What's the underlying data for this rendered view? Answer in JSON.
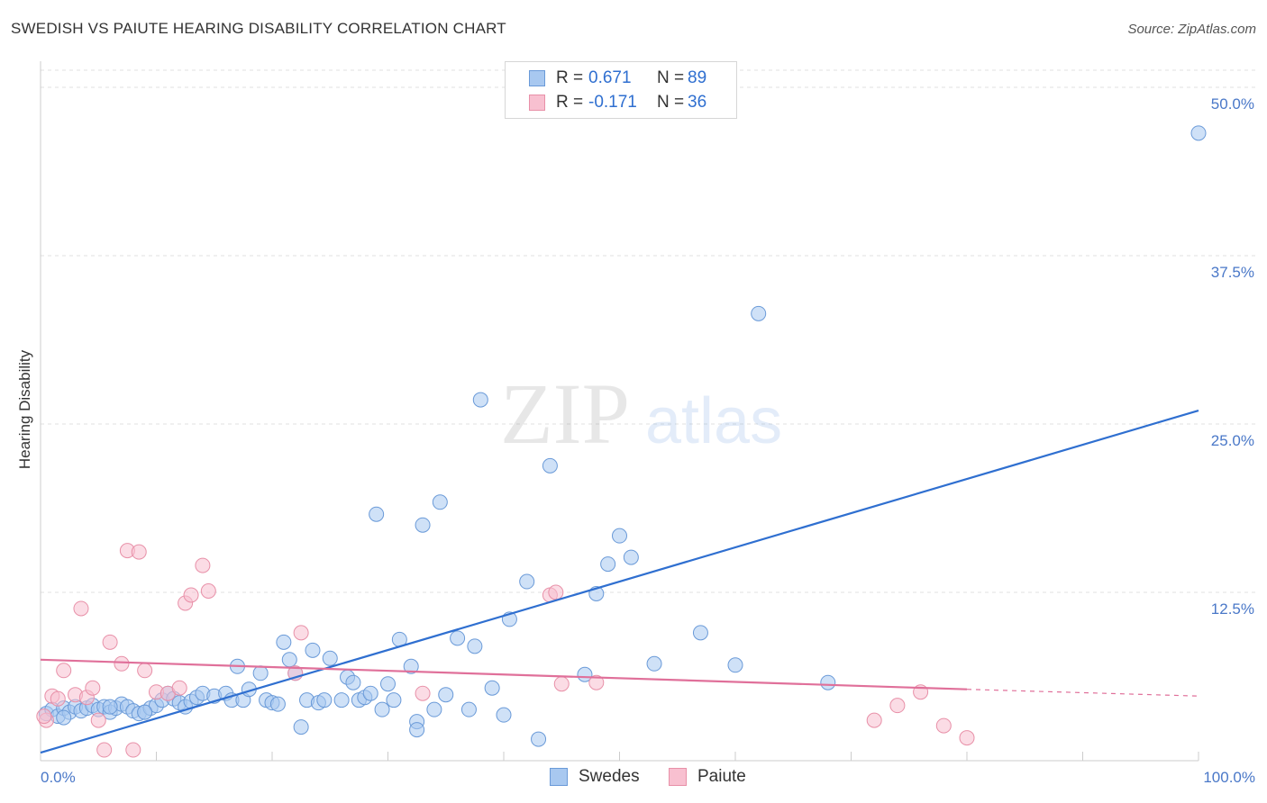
{
  "title": "SWEDISH VS PAIUTE HEARING DISABILITY CORRELATION CHART",
  "source": "Source: ZipAtlas.com",
  "watermark": {
    "zip": "ZIP",
    "atlas": "atlas"
  },
  "legend": {
    "rows": [
      {
        "label": "R =",
        "r": "0.671",
        "n_label": "N =",
        "n": "89",
        "color": "#a8c8f0",
        "border": "#6a9ad8"
      },
      {
        "label": "R =",
        "r": "-0.171",
        "n_label": "N =",
        "n": "36",
        "color": "#f8c0d0",
        "border": "#e890a8"
      }
    ],
    "bottom": [
      {
        "name": "Swedes",
        "color": "#a8c8f0",
        "border": "#6a9ad8"
      },
      {
        "name": "Paiute",
        "color": "#f8c0d0",
        "border": "#e890a8"
      }
    ]
  },
  "chart_data": {
    "type": "scatter",
    "title": "SWEDISH VS PAIUTE HEARING DISABILITY CORRELATION CHART",
    "xlabel": "",
    "ylabel": "Hearing Disability",
    "xlim": [
      0,
      100
    ],
    "ylim": [
      0,
      52
    ],
    "x_tick_labels": [
      "0.0%",
      "100.0%"
    ],
    "y_ticks": [
      12.5,
      25.0,
      37.5,
      50.0
    ],
    "y_tick_labels": [
      "12.5%",
      "25.0%",
      "37.5%",
      "50.0%"
    ],
    "grid": true,
    "series": [
      {
        "name": "Swedes",
        "color": "#a8c8f0",
        "stroke": "#6a9ad8",
        "trend": {
          "x0": 0,
          "y0": 0.6,
          "x1": 100,
          "y1": 26.0,
          "color": "#2f6fd0"
        },
        "points": [
          [
            0.5,
            3.5
          ],
          [
            1,
            3.8
          ],
          [
            1.5,
            3.3
          ],
          [
            2,
            3.9
          ],
          [
            2.5,
            3.6
          ],
          [
            3,
            4.0
          ],
          [
            3.5,
            3.7
          ],
          [
            4,
            3.9
          ],
          [
            4.5,
            4.1
          ],
          [
            5,
            3.8
          ],
          [
            5.5,
            4.0
          ],
          [
            6,
            3.6
          ],
          [
            6.5,
            3.9
          ],
          [
            7,
            4.2
          ],
          [
            7.5,
            4.0
          ],
          [
            8,
            3.7
          ],
          [
            8.5,
            3.5
          ],
          [
            9,
            3.6
          ],
          [
            9.5,
            3.9
          ],
          [
            10,
            4.1
          ],
          [
            10.5,
            4.5
          ],
          [
            11,
            5.0
          ],
          [
            11.5,
            4.6
          ],
          [
            12,
            4.3
          ],
          [
            12.5,
            4.0
          ],
          [
            13,
            4.4
          ],
          [
            13.5,
            4.7
          ],
          [
            14,
            5.0
          ],
          [
            15,
            4.8
          ],
          [
            16,
            5.0
          ],
          [
            16.5,
            4.5
          ],
          [
            17,
            7.0
          ],
          [
            17.5,
            4.5
          ],
          [
            18,
            5.3
          ],
          [
            19,
            6.5
          ],
          [
            19.5,
            4.5
          ],
          [
            20,
            4.3
          ],
          [
            20.5,
            4.2
          ],
          [
            21,
            8.8
          ],
          [
            21.5,
            7.5
          ],
          [
            22,
            6.5
          ],
          [
            22.5,
            2.5
          ],
          [
            23,
            4.5
          ],
          [
            23.5,
            8.2
          ],
          [
            24,
            4.3
          ],
          [
            24.5,
            4.5
          ],
          [
            25,
            7.6
          ],
          [
            26,
            4.5
          ],
          [
            26.5,
            6.2
          ],
          [
            27,
            5.8
          ],
          [
            27.5,
            4.5
          ],
          [
            28,
            4.7
          ],
          [
            28.5,
            5.0
          ],
          [
            29,
            18.3
          ],
          [
            29.5,
            3.8
          ],
          [
            30,
            5.7
          ],
          [
            30.5,
            4.5
          ],
          [
            31,
            9.0
          ],
          [
            32,
            7.0
          ],
          [
            32.5,
            2.9
          ],
          [
            32.5,
            2.3
          ],
          [
            33,
            17.5
          ],
          [
            34,
            3.8
          ],
          [
            34.5,
            19.2
          ],
          [
            35,
            4.9
          ],
          [
            36,
            9.1
          ],
          [
            37,
            3.8
          ],
          [
            37.5,
            8.5
          ],
          [
            38,
            26.8
          ],
          [
            39,
            5.4
          ],
          [
            40,
            3.4
          ],
          [
            40.5,
            10.5
          ],
          [
            42,
            13.3
          ],
          [
            43,
            1.6
          ],
          [
            44,
            21.9
          ],
          [
            47,
            6.4
          ],
          [
            48,
            12.4
          ],
          [
            49,
            14.6
          ],
          [
            50,
            16.7
          ],
          [
            51,
            15.1
          ],
          [
            53,
            7.2
          ],
          [
            57,
            9.5
          ],
          [
            60,
            7.1
          ],
          [
            62,
            33.2
          ],
          [
            68,
            5.8
          ],
          [
            100,
            46.6
          ],
          [
            2,
            3.2
          ],
          [
            6,
            4.0
          ],
          [
            9,
            3.6
          ]
        ]
      },
      {
        "name": "Paiute",
        "color": "#f8c0d0",
        "stroke": "#e890a8",
        "trend": {
          "x0": 0,
          "y0": 7.5,
          "x1": 80,
          "y1": 5.3,
          "color": "#e0709a",
          "dash_to_x": 100,
          "dash_to_y": 4.8
        },
        "points": [
          [
            0.5,
            3.0
          ],
          [
            1,
            4.8
          ],
          [
            1.5,
            4.6
          ],
          [
            2,
            6.7
          ],
          [
            3,
            4.9
          ],
          [
            3.5,
            11.3
          ],
          [
            4,
            4.7
          ],
          [
            4.5,
            5.4
          ],
          [
            5,
            3.0
          ],
          [
            5.5,
            0.8
          ],
          [
            6,
            8.8
          ],
          [
            7,
            7.2
          ],
          [
            7.5,
            15.6
          ],
          [
            8,
            0.8
          ],
          [
            8.5,
            15.5
          ],
          [
            9,
            6.7
          ],
          [
            10,
            5.1
          ],
          [
            11,
            5.0
          ],
          [
            12,
            5.4
          ],
          [
            12.5,
            11.7
          ],
          [
            13,
            12.3
          ],
          [
            14,
            14.5
          ],
          [
            14.5,
            12.6
          ],
          [
            22,
            6.5
          ],
          [
            22.5,
            9.5
          ],
          [
            33,
            5.0
          ],
          [
            44,
            12.3
          ],
          [
            44.5,
            12.5
          ],
          [
            45,
            5.7
          ],
          [
            48,
            5.8
          ],
          [
            72,
            3.0
          ],
          [
            74,
            4.1
          ],
          [
            76,
            5.1
          ],
          [
            78,
            2.6
          ],
          [
            80,
            1.7
          ],
          [
            0.3,
            3.3
          ]
        ]
      }
    ]
  }
}
